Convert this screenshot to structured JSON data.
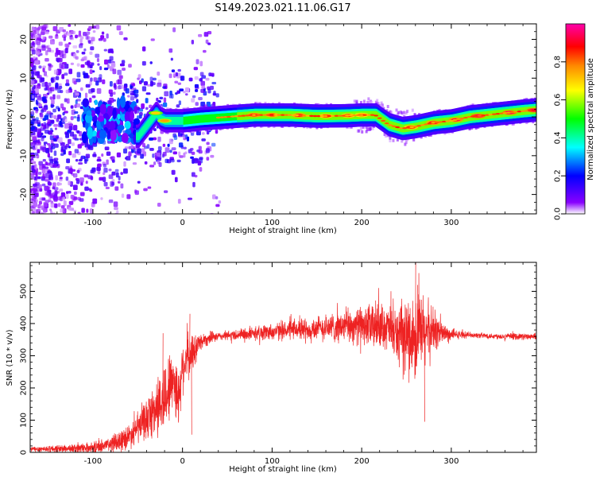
{
  "title": "S149.2023.021.11.06.G17",
  "chart_data": [
    {
      "type": "heatmap",
      "xlabel": "Height of straight line (km)",
      "ylabel": "Frequency (Hz)",
      "xlim": [
        -170,
        395
      ],
      "ylim": [
        -25,
        24
      ],
      "xticks": [
        "-100",
        "0",
        "100",
        "200",
        "300"
      ],
      "yticks": [
        "-20",
        "-10",
        "0",
        "10",
        "20"
      ],
      "colorbar": {
        "label": "Normalized spectral amplitude",
        "range": [
          0,
          1
        ],
        "ticks": [
          "0.0",
          "0.2",
          "0.4",
          "0.6",
          "0.8"
        ],
        "colormap": [
          "#ffffff",
          "#8800ff",
          "#0000ff",
          "#00ffff",
          "#00ff00",
          "#ffff00",
          "#ff8800",
          "#ff0000",
          "#ff00aa"
        ]
      },
      "ridge": {
        "x": [
          -50,
          -45,
          -40,
          -35,
          -30,
          -25,
          -20,
          0,
          20,
          50,
          80,
          100,
          120,
          150,
          180,
          200,
          215,
          230,
          245,
          260,
          280,
          300,
          320,
          340,
          360,
          380,
          395
        ],
        "freq": [
          -5,
          -3.5,
          -2,
          -0.5,
          1,
          -0.5,
          -1,
          -1,
          -0.5,
          0,
          0.5,
          0.5,
          0.5,
          0.2,
          0.3,
          0.5,
          0.5,
          -2,
          -3,
          -2.5,
          -1.5,
          -1,
          0,
          0.5,
          1,
          1.5,
          1.8
        ]
      },
      "grid": false,
      "legend": "none"
    },
    {
      "type": "line",
      "xlabel": "Height of straight line (km)",
      "ylabel": "SNR (10 * v/v)",
      "xlim": [
        -170,
        395
      ],
      "ylim": [
        0,
        590
      ],
      "xticks": [
        "-100",
        "0",
        "100",
        "200",
        "300"
      ],
      "yticks": [
        "0",
        "100",
        "200",
        "300",
        "400",
        "500"
      ],
      "color": "#ee2222",
      "series": [
        {
          "x": [
            -170,
            -120,
            -100,
            -80,
            -60,
            -45,
            -35,
            -25,
            -20,
            -15,
            -10,
            -5,
            0,
            5,
            10,
            15,
            20,
            30,
            40,
            60,
            80,
            100,
            120,
            150,
            180,
            200,
            210,
            220,
            230,
            240,
            250,
            260,
            270,
            280,
            290,
            300,
            320,
            340,
            360,
            380,
            395
          ],
          "values": [
            10,
            12,
            15,
            25,
            50,
            90,
            120,
            150,
            170,
            200,
            240,
            160,
            270,
            290,
            300,
            330,
            345,
            355,
            360,
            365,
            370,
            375,
            380,
            385,
            390,
            395,
            390,
            395,
            385,
            360,
            360,
            360,
            370,
            380,
            370,
            365,
            365,
            362,
            360,
            360,
            358
          ]
        }
      ],
      "noise_envelope": {
        "x": [
          -170,
          -100,
          -60,
          -40,
          -20,
          0,
          10,
          20,
          40,
          100,
          150,
          200,
          215,
          225,
          240,
          250,
          260,
          270,
          280,
          290,
          300,
          320,
          395
        ],
        "amplitude": [
          8,
          15,
          35,
          60,
          110,
          80,
          60,
          25,
          12,
          25,
          35,
          55,
          70,
          60,
          80,
          110,
          130,
          110,
          70,
          35,
          15,
          8,
          10
        ]
      },
      "grid": false,
      "legend": "none"
    }
  ]
}
